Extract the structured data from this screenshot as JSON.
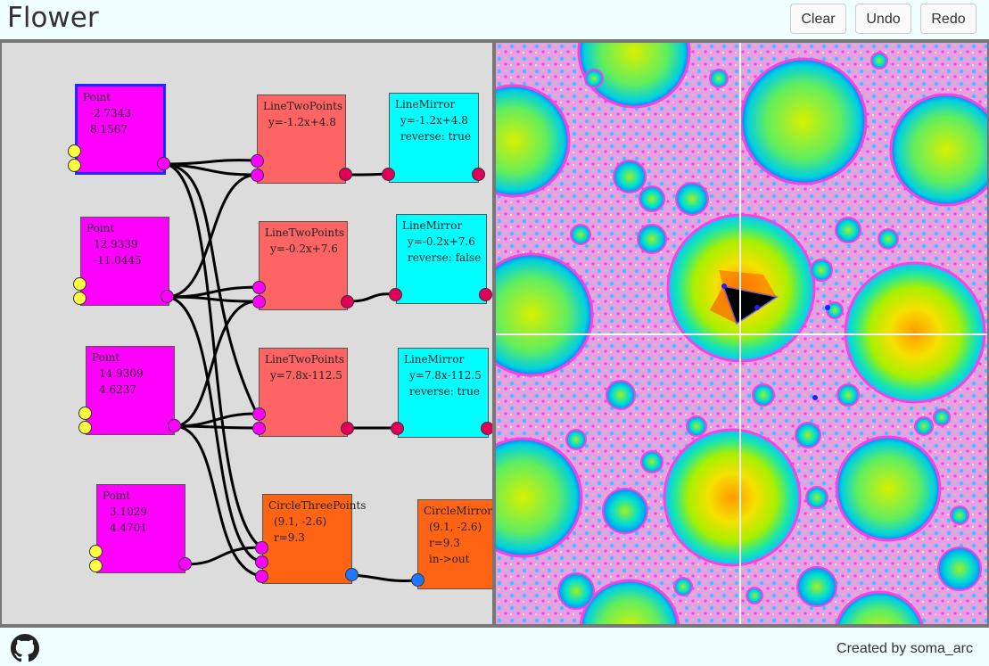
{
  "app": {
    "title": "Flower"
  },
  "toolbar": {
    "clear_label": "Clear",
    "undo_label": "Undo",
    "redo_label": "Redo"
  },
  "footer": {
    "credit": "Created by soma_arc",
    "github_icon": "github-icon"
  },
  "nodes": {
    "point1": {
      "name": "Point",
      "v1": "-2.7343",
      "v2": "8.1567"
    },
    "point2": {
      "name": "Point",
      "v1": "12.9339",
      "v2": "-11.0445"
    },
    "point3": {
      "name": "Point",
      "v1": "14.9309",
      "v2": "4.6237"
    },
    "point4": {
      "name": "Point",
      "v1": "3.1029",
      "v2": "4.4701"
    },
    "line1": {
      "name": "LineTwoPoints",
      "v1": "y=-1.2x+4.8"
    },
    "line2": {
      "name": "LineTwoPoints",
      "v1": "y=-0.2x+7.6"
    },
    "line3": {
      "name": "LineTwoPoints",
      "v1": "y=7.8x-112.5"
    },
    "circle": {
      "name": "CircleThreePoints",
      "v1": "(9.1, -2.6)",
      "v2": "r=9.3"
    },
    "mirror1": {
      "name": "LineMirror",
      "v1": "y=-1.2x+4.8",
      "v2": "reverse: true"
    },
    "mirror2": {
      "name": "LineMirror",
      "v1": "y=-0.2x+7.6",
      "v2": "reverse: false"
    },
    "mirror3": {
      "name": "LineMirror",
      "v1": "y=7.8x-112.5",
      "v2": "reverse: true"
    },
    "cmirror": {
      "name": "CircleMirror",
      "v1": "(9.1, -2.6)",
      "v2": "r=9.3",
      "v3": "in->out"
    }
  },
  "colors": {
    "point": "#ff00ff",
    "line": "#ff6464",
    "circle": "#ff6414",
    "mirror": "#00ffff",
    "port_in_point": "#ffff40",
    "port_out": "#ff00ff",
    "port_crimson": "#e0005a",
    "port_blue": "#1e78ff",
    "selected_border": "#1a2cff"
  }
}
